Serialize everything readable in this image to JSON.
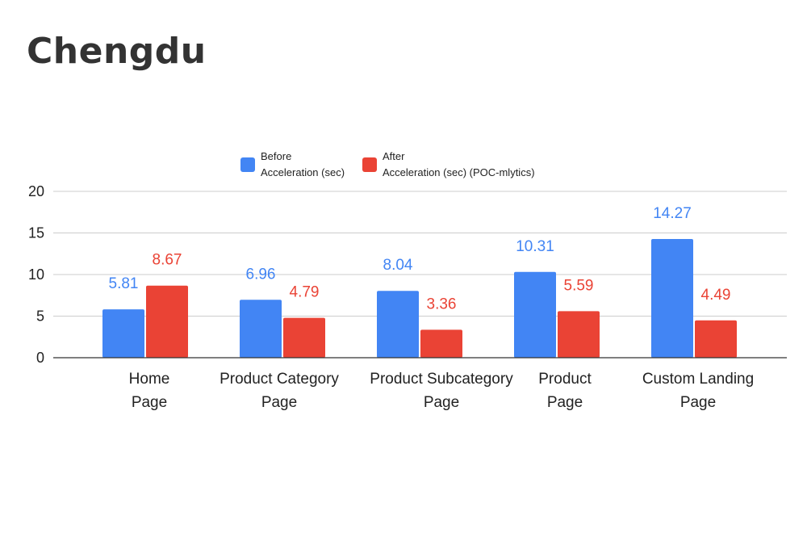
{
  "title": "Chengdu",
  "colors": {
    "before": "#4285F4",
    "after": "#EA4335",
    "grid": "#cccccc",
    "axis": "#333333"
  },
  "chart_data": {
    "type": "bar",
    "title": "Chengdu",
    "xlabel": "",
    "ylabel": "",
    "ylim": [
      0,
      20
    ],
    "yticks": [
      0,
      5,
      10,
      15,
      20
    ],
    "grid": true,
    "legend_position": "top",
    "categories": [
      [
        "Home",
        "Page"
      ],
      [
        "Product Category",
        "Page"
      ],
      [
        "Product Subcategory",
        "Page"
      ],
      [
        "Product",
        "Page"
      ],
      [
        "Custom Landing",
        "Page"
      ]
    ],
    "series": [
      {
        "name": "Before Acceleration (sec)",
        "legend_lines": [
          "Before",
          "Acceleration (sec)"
        ],
        "color": "#4285F4",
        "values": [
          5.81,
          6.96,
          8.04,
          10.31,
          14.27
        ],
        "labels": [
          "5.81",
          "6.96",
          "8.04",
          "10.31",
          "14.27"
        ]
      },
      {
        "name": "After Acceleration (sec) (POC-mlytics)",
        "legend_lines": [
          "After",
          "Acceleration (sec) (POC-mlytics)"
        ],
        "color": "#EA4335",
        "values": [
          8.67,
          4.79,
          3.36,
          5.59,
          4.49
        ],
        "labels": [
          "8.67",
          "4.79",
          "3.36",
          "5.59",
          "4.49"
        ]
      }
    ]
  }
}
